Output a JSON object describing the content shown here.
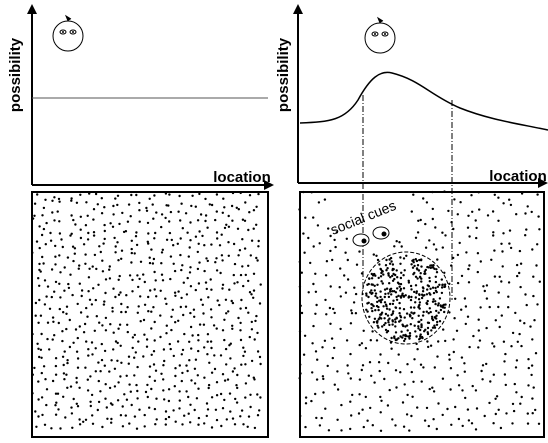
{
  "panels": [
    {
      "y_label": "possibility",
      "x_label": "location"
    },
    {
      "y_label": "possibility",
      "x_label": "location",
      "annotation": "social cues"
    }
  ]
}
